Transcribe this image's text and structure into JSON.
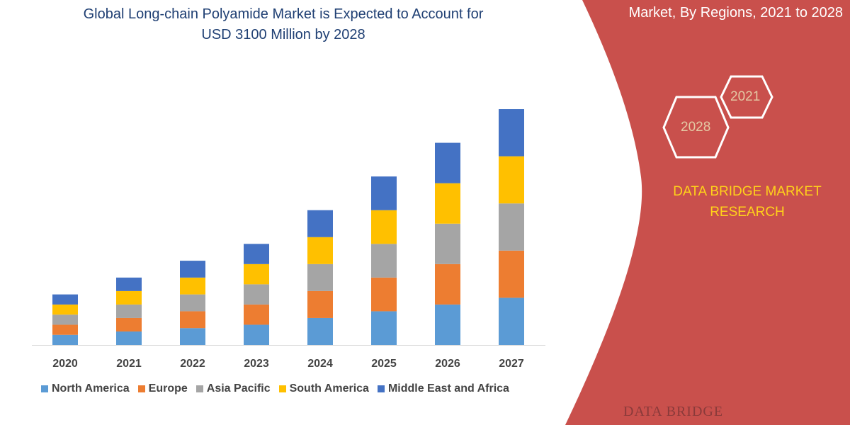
{
  "header": {
    "title_line1": "Global Long-chain Polyamide Market is Expected to Account for",
    "title_line2": "USD 3100 Million by 2028",
    "right_title": "Market, By Regions, 2021 to 2028"
  },
  "badges": {
    "year_a": "2021",
    "year_b": "2028"
  },
  "brand": {
    "line1": "DATA BRIDGE MARKET",
    "line2": "RESEARCH",
    "footer_logo": "DATA BRIDGE"
  },
  "colors": {
    "panel": "#c9504c",
    "title": "#1f3f73",
    "brand_text": "#ffd21a"
  },
  "chart_data": {
    "type": "bar",
    "stacked": true,
    "title": "Global Long-chain Polyamide Market is Expected to Account for USD 3100 Million by 2028",
    "categories": [
      "2020",
      "2021",
      "2022",
      "2023",
      "2024",
      "2025",
      "2026",
      "2027"
    ],
    "series": [
      {
        "name": "North America",
        "color": "#5b9bd5",
        "values": [
          15,
          20,
          25,
          30,
          40,
          50,
          60,
          70
        ]
      },
      {
        "name": "Europe",
        "color": "#ed7d31",
        "values": [
          15,
          20,
          25,
          30,
          40,
          50,
          60,
          70
        ]
      },
      {
        "name": "Asia Pacific",
        "color": "#a5a5a5",
        "values": [
          15,
          20,
          25,
          30,
          40,
          50,
          60,
          70
        ]
      },
      {
        "name": "South America",
        "color": "#ffc000",
        "values": [
          15,
          20,
          25,
          30,
          40,
          50,
          60,
          70
        ]
      },
      {
        "name": "Middle East and Africa",
        "color": "#4472c4",
        "values": [
          15,
          20,
          25,
          30,
          40,
          50,
          60,
          70
        ]
      }
    ],
    "xlabel": "",
    "ylabel": "",
    "ylim": [
      0,
      370
    ],
    "grid": false,
    "legend": "bottom"
  }
}
